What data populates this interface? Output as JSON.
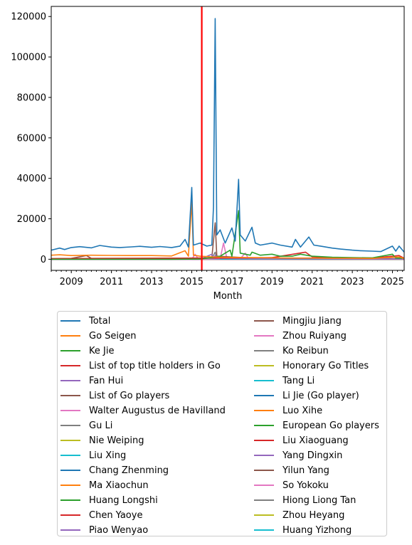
{
  "chart_data": {
    "type": "line",
    "xlabel": "Month",
    "ylabel": "",
    "xlim": [
      "2008-01",
      "2025-08"
    ],
    "ylim": [
      -5500,
      125000
    ],
    "x_tick_labels": [
      "2009",
      "2011",
      "2013",
      "2015",
      "2017",
      "2019",
      "2021",
      "2023",
      "2025"
    ],
    "y_tick_labels": [
      "0",
      "20000",
      "40000",
      "60000",
      "80000",
      "100000",
      "120000"
    ],
    "y_ticks": [
      0,
      20000,
      40000,
      60000,
      80000,
      100000,
      120000
    ],
    "grid": false,
    "legend_position": "below",
    "marker_line": {
      "x": "2015-07",
      "color": "#ff0000"
    },
    "series": [
      {
        "name": "Total",
        "color": "#1f77b4",
        "points": [
          [
            "2008-01",
            4500
          ],
          [
            "2008-06",
            5500
          ],
          [
            "2008-09",
            4800
          ],
          [
            "2009-01",
            5800
          ],
          [
            "2009-06",
            6200
          ],
          [
            "2010-01",
            5600
          ],
          [
            "2010-06",
            6800
          ],
          [
            "2011-01",
            6000
          ],
          [
            "2011-06",
            5800
          ],
          [
            "2012-01",
            6100
          ],
          [
            "2012-06",
            6400
          ],
          [
            "2013-01",
            5900
          ],
          [
            "2013-06",
            6300
          ],
          [
            "2014-01",
            5800
          ],
          [
            "2014-06",
            6500
          ],
          [
            "2014-09",
            9800
          ],
          [
            "2014-11",
            6000
          ],
          [
            "2015-01",
            35500
          ],
          [
            "2015-02",
            7000
          ],
          [
            "2015-06",
            8000
          ],
          [
            "2015-10",
            6500
          ],
          [
            "2016-01",
            7000
          ],
          [
            "2016-02",
            25800
          ],
          [
            "2016-03",
            119000
          ],
          [
            "2016-04",
            12000
          ],
          [
            "2016-06",
            14500
          ],
          [
            "2016-09",
            8000
          ],
          [
            "2017-01",
            15500
          ],
          [
            "2017-03",
            9000
          ],
          [
            "2017-05",
            39500
          ],
          [
            "2017-06",
            12000
          ],
          [
            "2017-09",
            9000
          ],
          [
            "2018-01",
            15800
          ],
          [
            "2018-03",
            8000
          ],
          [
            "2018-06",
            7000
          ],
          [
            "2019-01",
            8000
          ],
          [
            "2019-06",
            7000
          ],
          [
            "2020-01",
            6000
          ],
          [
            "2020-03",
            9800
          ],
          [
            "2020-06",
            6000
          ],
          [
            "2020-11",
            11000
          ],
          [
            "2021-02",
            7000
          ],
          [
            "2021-06",
            6500
          ],
          [
            "2022-01",
            5500
          ],
          [
            "2022-06",
            5000
          ],
          [
            "2023-01",
            4500
          ],
          [
            "2023-06",
            4200
          ],
          [
            "2024-01",
            4000
          ],
          [
            "2024-06",
            3800
          ],
          [
            "2025-01",
            6500
          ],
          [
            "2025-03",
            4000
          ],
          [
            "2025-05",
            6500
          ],
          [
            "2025-08",
            3500
          ]
        ]
      },
      {
        "name": "Go Seigen",
        "color": "#ff7f0e",
        "points": [
          [
            "2008-01",
            2000
          ],
          [
            "2008-06",
            2200
          ],
          [
            "2009-01",
            1800
          ],
          [
            "2010-01",
            2000
          ],
          [
            "2011-01",
            1900
          ],
          [
            "2012-01",
            1800
          ],
          [
            "2013-01",
            1800
          ],
          [
            "2014-01",
            1600
          ],
          [
            "2014-09",
            4200
          ],
          [
            "2014-11",
            1500
          ],
          [
            "2015-01",
            28500
          ],
          [
            "2015-02",
            2000
          ],
          [
            "2015-06",
            1500
          ],
          [
            "2016-01",
            1200
          ],
          [
            "2016-06",
            1000
          ],
          [
            "2017-01",
            900
          ],
          [
            "2018-01",
            800
          ],
          [
            "2019-01",
            700
          ],
          [
            "2020-01",
            600
          ],
          [
            "2021-01",
            600
          ],
          [
            "2022-01",
            500
          ],
          [
            "2023-01",
            500
          ],
          [
            "2024-01",
            400
          ],
          [
            "2025-05",
            1200
          ],
          [
            "2025-08",
            400
          ]
        ]
      },
      {
        "name": "Ke Jie",
        "color": "#2ca02c",
        "points": [
          [
            "2008-01",
            0
          ],
          [
            "2014-01",
            0
          ],
          [
            "2015-06",
            100
          ],
          [
            "2016-01",
            800
          ],
          [
            "2016-06",
            1500
          ],
          [
            "2016-12",
            4500
          ],
          [
            "2017-01",
            1500
          ],
          [
            "2017-05",
            24000
          ],
          [
            "2017-06",
            3000
          ],
          [
            "2017-12",
            2000
          ],
          [
            "2018-01",
            3500
          ],
          [
            "2018-06",
            2000
          ],
          [
            "2019-01",
            2500
          ],
          [
            "2019-06",
            1500
          ],
          [
            "2020-01",
            1500
          ],
          [
            "2020-06",
            2500
          ],
          [
            "2021-01",
            1500
          ],
          [
            "2022-01",
            1000
          ],
          [
            "2023-01",
            800
          ],
          [
            "2024-01",
            700
          ],
          [
            "2025-01",
            2500
          ],
          [
            "2025-03",
            600
          ],
          [
            "2025-08",
            500
          ]
        ]
      },
      {
        "name": "List of top title holders in Go",
        "color": "#d62728",
        "points": [
          [
            "2008-01",
            300
          ],
          [
            "2012-01",
            400
          ],
          [
            "2016-01",
            600
          ],
          [
            "2019-01",
            800
          ],
          [
            "2020-09",
            3500
          ],
          [
            "2021-01",
            1200
          ],
          [
            "2022-01",
            800
          ],
          [
            "2024-01",
            600
          ],
          [
            "2025-05",
            1800
          ],
          [
            "2025-08",
            500
          ]
        ]
      },
      {
        "name": "Fan Hui",
        "color": "#9467bd",
        "points": [
          [
            "2008-01",
            0
          ],
          [
            "2015-06",
            0
          ],
          [
            "2016-01",
            2500
          ],
          [
            "2016-02",
            800
          ],
          [
            "2016-03",
            1800
          ],
          [
            "2016-06",
            400
          ],
          [
            "2018-01",
            300
          ],
          [
            "2025-08",
            150
          ]
        ]
      },
      {
        "name": "List of Go players",
        "color": "#8c564b",
        "points": [
          [
            "2008-01",
            300
          ],
          [
            "2009-01",
            400
          ],
          [
            "2009-10",
            1800
          ],
          [
            "2010-01",
            400
          ],
          [
            "2014-01",
            500
          ],
          [
            "2016-01",
            700
          ],
          [
            "2016-03",
            18000
          ],
          [
            "2016-04",
            1500
          ],
          [
            "2018-01",
            600
          ],
          [
            "2021-01",
            500
          ],
          [
            "2025-08",
            300
          ]
        ]
      },
      {
        "name": "Walter Augustus de Havilland",
        "color": "#e377c2",
        "points": [
          [
            "2008-01",
            0
          ],
          [
            "2015-01",
            0
          ],
          [
            "2015-03",
            2500
          ],
          [
            "2015-05",
            0
          ],
          [
            "2016-06",
            300
          ],
          [
            "2016-08",
            8000
          ],
          [
            "2016-10",
            500
          ],
          [
            "2017-06",
            300
          ],
          [
            "2017-09",
            3000
          ],
          [
            "2017-11",
            300
          ],
          [
            "2025-08",
            100
          ]
        ]
      },
      {
        "name": "Gu Li",
        "color": "#7f7f7f",
        "points": [
          [
            "2008-01",
            200
          ],
          [
            "2016-01",
            400
          ],
          [
            "2016-03",
            3500
          ],
          [
            "2016-04",
            400
          ],
          [
            "2025-08",
            150
          ]
        ]
      },
      {
        "name": "Nie Weiping",
        "color": "#bcbd22",
        "points": [
          [
            "2008-01",
            150
          ],
          [
            "2016-03",
            600
          ],
          [
            "2025-08",
            100
          ]
        ]
      },
      {
        "name": "Liu Xing",
        "color": "#17becf",
        "points": [
          [
            "2008-01",
            100
          ],
          [
            "2025-08",
            80
          ]
        ]
      },
      {
        "name": "Chang Zhenming",
        "color": "#1f77b4",
        "points": [
          [
            "2008-01",
            100
          ],
          [
            "2025-08",
            80
          ]
        ]
      },
      {
        "name": "Ma Xiaochun",
        "color": "#ff7f0e",
        "points": [
          [
            "2008-01",
            150
          ],
          [
            "2025-08",
            80
          ]
        ]
      },
      {
        "name": "Huang Longshi",
        "color": "#2ca02c",
        "points": [
          [
            "2008-01",
            100
          ],
          [
            "2025-08",
            80
          ]
        ]
      },
      {
        "name": "Chen Yaoye",
        "color": "#d62728",
        "points": [
          [
            "2008-01",
            100
          ],
          [
            "2016-03",
            500
          ],
          [
            "2025-08",
            80
          ]
        ]
      },
      {
        "name": "Piao Wenyao",
        "color": "#9467bd",
        "points": [
          [
            "2008-01",
            80
          ],
          [
            "2025-08",
            60
          ]
        ]
      },
      {
        "name": "Mingjiu Jiang",
        "color": "#8c564b",
        "points": [
          [
            "2008-01",
            80
          ],
          [
            "2025-08",
            60
          ]
        ]
      },
      {
        "name": "Zhou Ruiyang",
        "color": "#e377c2",
        "points": [
          [
            "2008-01",
            60
          ],
          [
            "2025-08",
            60
          ]
        ]
      },
      {
        "name": "Ko Reibun",
        "color": "#7f7f7f",
        "points": [
          [
            "2008-01",
            60
          ],
          [
            "2025-08",
            50
          ]
        ]
      },
      {
        "name": "Honorary Go Titles",
        "color": "#bcbd22",
        "points": [
          [
            "2008-01",
            60
          ],
          [
            "2025-08",
            50
          ]
        ]
      },
      {
        "name": "Tang Li",
        "color": "#17becf",
        "points": [
          [
            "2008-01",
            50
          ],
          [
            "2025-08",
            50
          ]
        ]
      },
      {
        "name": "Li Jie (Go player)",
        "color": "#1f77b4",
        "points": [
          [
            "2008-01",
            50
          ],
          [
            "2025-08",
            40
          ]
        ]
      },
      {
        "name": "Luo Xihe",
        "color": "#ff7f0e",
        "points": [
          [
            "2008-01",
            50
          ],
          [
            "2025-08",
            40
          ]
        ]
      },
      {
        "name": "European Go players",
        "color": "#2ca02c",
        "points": [
          [
            "2008-01",
            50
          ],
          [
            "2025-08",
            40
          ]
        ]
      },
      {
        "name": "Liu Xiaoguang",
        "color": "#d62728",
        "points": [
          [
            "2008-01",
            40
          ],
          [
            "2025-08",
            40
          ]
        ]
      },
      {
        "name": "Yang Dingxin",
        "color": "#9467bd",
        "points": [
          [
            "2008-01",
            30
          ],
          [
            "2025-08",
            40
          ]
        ]
      },
      {
        "name": "Yilun Yang",
        "color": "#8c564b",
        "points": [
          [
            "2008-01",
            40
          ],
          [
            "2025-08",
            30
          ]
        ]
      },
      {
        "name": "So Yokoku",
        "color": "#e377c2",
        "points": [
          [
            "2008-01",
            30
          ],
          [
            "2025-08",
            30
          ]
        ]
      },
      {
        "name": "Hiong Liong Tan",
        "color": "#7f7f7f",
        "points": [
          [
            "2008-01",
            30
          ],
          [
            "2025-08",
            30
          ]
        ]
      },
      {
        "name": "Zhou Heyang",
        "color": "#bcbd22",
        "points": [
          [
            "2008-01",
            30
          ],
          [
            "2025-08",
            30
          ]
        ]
      },
      {
        "name": "Huang Yizhong",
        "color": "#17becf",
        "points": [
          [
            "2008-01",
            30
          ],
          [
            "2025-08",
            30
          ]
        ]
      }
    ]
  }
}
